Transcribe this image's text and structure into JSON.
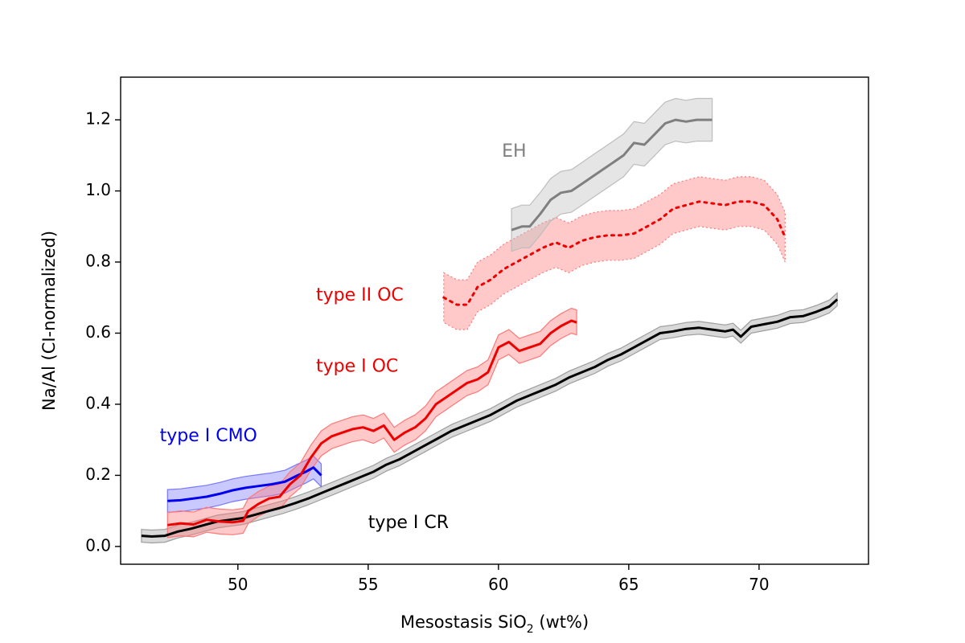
{
  "chart_data": {
    "type": "line",
    "title": "",
    "xlabel_main": "Mesostasis SiO",
    "xlabel_sub": "2",
    "xlabel_tail": " (wt%)",
    "ylabel": "Na/Al (CI-normalized)",
    "xlim": [
      45.5,
      74.2
    ],
    "ylim": [
      -0.05,
      1.32
    ],
    "xticks": [
      50,
      55,
      60,
      65,
      70
    ],
    "yticks": [
      0.0,
      0.2,
      0.4,
      0.6,
      0.8,
      1.0,
      1.2
    ],
    "grid": false,
    "series": [
      {
        "name": "type I CR",
        "label": "type I CR",
        "color": "#000000",
        "band_color": "#9e9e9e",
        "dash": "",
        "label_pos": [
          55.0,
          0.065
        ],
        "label_anchor": "start",
        "band_halfwidth": 0.018,
        "x": [
          46.3,
          46.7,
          47.2,
          47.7,
          48.2,
          48.7,
          49.2,
          49.7,
          50.2,
          50.7,
          51.2,
          51.7,
          52.2,
          52.7,
          53.2,
          53.7,
          54.2,
          54.7,
          55.2,
          55.7,
          56.2,
          56.7,
          57.2,
          57.7,
          58.2,
          58.7,
          59.2,
          59.7,
          60.2,
          60.7,
          61.2,
          61.7,
          62.2,
          62.7,
          63.2,
          63.7,
          64.2,
          64.7,
          65.2,
          65.7,
          66.2,
          66.7,
          67.2,
          67.7,
          68.2,
          68.7,
          69.0,
          69.3,
          69.7,
          70.2,
          70.7,
          71.2,
          71.7,
          72.2,
          72.7,
          73.0
        ],
        "y": [
          0.03,
          0.028,
          0.03,
          0.042,
          0.05,
          0.06,
          0.07,
          0.075,
          0.08,
          0.09,
          0.1,
          0.11,
          0.122,
          0.135,
          0.15,
          0.165,
          0.18,
          0.195,
          0.21,
          0.23,
          0.245,
          0.265,
          0.285,
          0.305,
          0.325,
          0.34,
          0.355,
          0.37,
          0.39,
          0.41,
          0.425,
          0.44,
          0.455,
          0.475,
          0.49,
          0.505,
          0.525,
          0.54,
          0.56,
          0.58,
          0.6,
          0.605,
          0.612,
          0.615,
          0.61,
          0.605,
          0.61,
          0.59,
          0.618,
          0.625,
          0.632,
          0.645,
          0.648,
          0.66,
          0.675,
          0.695
        ]
      },
      {
        "name": "type I CMO",
        "label": "type I CMO",
        "color": "#0000ee",
        "band_color": "#7777ff",
        "dash": "",
        "label_pos": [
          47.0,
          0.31
        ],
        "label_anchor": "start",
        "band_halfwidth": 0.032,
        "x": [
          47.3,
          47.8,
          48.3,
          48.8,
          49.3,
          49.8,
          50.3,
          50.8,
          51.3,
          51.8,
          52.3,
          52.6,
          52.9,
          53.2
        ],
        "y": [
          0.128,
          0.13,
          0.135,
          0.14,
          0.148,
          0.158,
          0.165,
          0.17,
          0.175,
          0.182,
          0.2,
          0.21,
          0.222,
          0.2
        ]
      },
      {
        "name": "type I OC",
        "label": "type I OC",
        "color": "#ee0000",
        "band_color": "#ff7777",
        "dash": "",
        "label_pos": [
          53.0,
          0.505
        ],
        "label_anchor": "start",
        "band_halfwidth": 0.035,
        "x": [
          47.3,
          47.8,
          48.3,
          48.8,
          49.3,
          49.8,
          50.2,
          50.4,
          50.8,
          51.2,
          51.6,
          52.0,
          52.4,
          52.8,
          53.2,
          53.6,
          54.0,
          54.4,
          54.8,
          55.2,
          55.6,
          56.0,
          56.4,
          56.8,
          57.2,
          57.6,
          58.0,
          58.4,
          58.8,
          59.2,
          59.6,
          60.0,
          60.4,
          60.8,
          61.2,
          61.6,
          62.0,
          62.4,
          62.8,
          63.0
        ],
        "y": [
          0.06,
          0.065,
          0.062,
          0.075,
          0.07,
          0.068,
          0.072,
          0.1,
          0.12,
          0.135,
          0.14,
          0.175,
          0.2,
          0.25,
          0.29,
          0.31,
          0.32,
          0.33,
          0.335,
          0.325,
          0.34,
          0.3,
          0.32,
          0.335,
          0.36,
          0.4,
          0.42,
          0.44,
          0.46,
          0.47,
          0.49,
          0.56,
          0.575,
          0.55,
          0.56,
          0.57,
          0.6,
          0.62,
          0.635,
          0.63
        ]
      },
      {
        "name": "type II OC",
        "label": "type II OC",
        "color": "#ee0000",
        "band_color": "#ff7777",
        "dash": "3,6",
        "label_pos": [
          53.0,
          0.705
        ],
        "label_anchor": "start",
        "band_halfwidth": 0.07,
        "x": [
          57.9,
          58.4,
          58.8,
          59.2,
          59.7,
          60.2,
          60.7,
          61.2,
          61.7,
          62.2,
          62.7,
          63.2,
          63.7,
          64.2,
          64.7,
          65.2,
          65.7,
          66.2,
          66.7,
          67.2,
          67.7,
          68.2,
          68.7,
          69.2,
          69.7,
          70.2,
          70.7,
          71.0
        ],
        "y": [
          0.7,
          0.68,
          0.68,
          0.73,
          0.75,
          0.78,
          0.8,
          0.82,
          0.84,
          0.855,
          0.84,
          0.86,
          0.87,
          0.875,
          0.875,
          0.88,
          0.9,
          0.92,
          0.95,
          0.96,
          0.97,
          0.965,
          0.96,
          0.97,
          0.97,
          0.96,
          0.92,
          0.87
        ]
      },
      {
        "name": "EH",
        "label": "EH",
        "color": "#7f7f7f",
        "band_color": "#bdbdbd",
        "dash": "",
        "label_pos": [
          60.6,
          1.11
        ],
        "label_anchor": "middle",
        "band_halfwidth": 0.06,
        "x": [
          60.5,
          60.9,
          61.2,
          61.6,
          62.0,
          62.4,
          62.8,
          63.2,
          63.6,
          64.0,
          64.4,
          64.8,
          65.2,
          65.6,
          66.0,
          66.4,
          66.8,
          67.2,
          67.6,
          68.0,
          68.2
        ],
        "y": [
          0.89,
          0.9,
          0.9,
          0.935,
          0.975,
          0.995,
          1.0,
          1.02,
          1.04,
          1.06,
          1.08,
          1.1,
          1.135,
          1.13,
          1.16,
          1.19,
          1.2,
          1.195,
          1.2,
          1.2,
          1.2
        ]
      }
    ]
  }
}
